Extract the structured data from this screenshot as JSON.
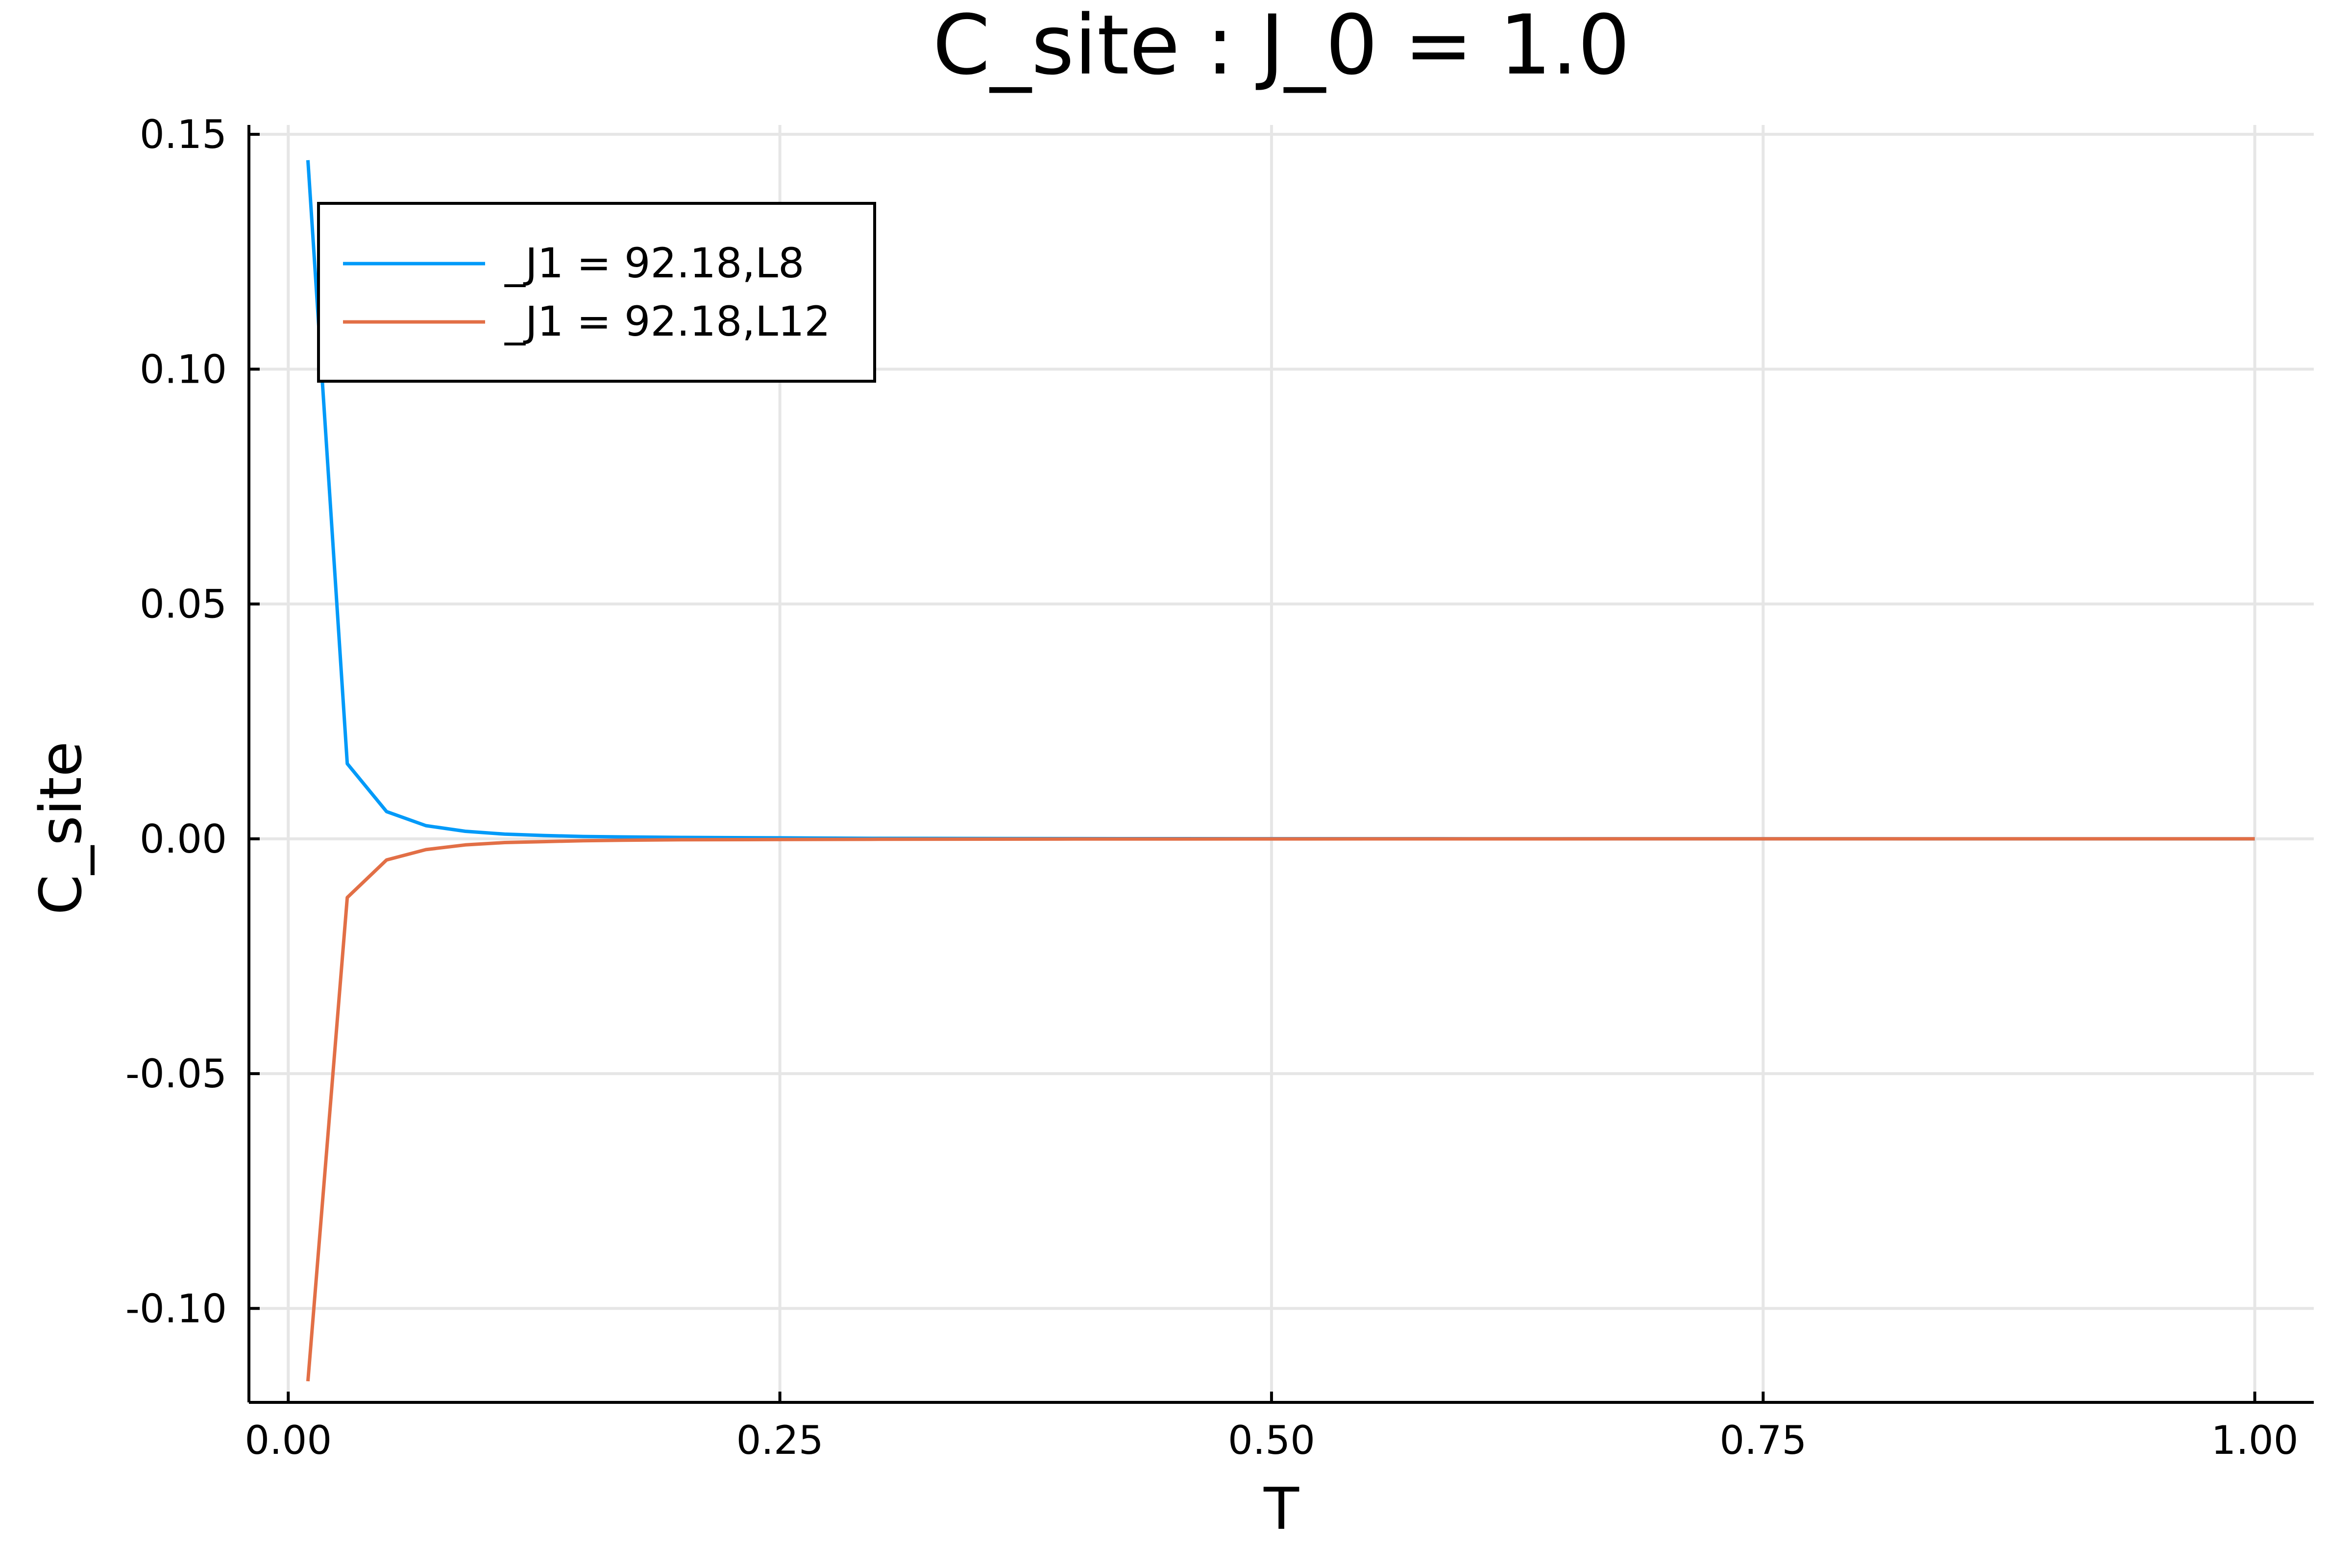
{
  "chart_data": {
    "type": "line",
    "title": "C_site : J_0 = 1.0",
    "xlabel": "T",
    "ylabel": "C_site",
    "xlim": [
      -0.02,
      1.03
    ],
    "ylim": [
      -0.12,
      0.152
    ],
    "xticks": [
      0.0,
      0.25,
      0.5,
      0.75,
      1.0
    ],
    "xtick_labels": [
      "0.00",
      "0.25",
      "0.50",
      "0.75",
      "1.00"
    ],
    "yticks": [
      -0.1,
      -0.05,
      0.0,
      0.05,
      0.1,
      0.15
    ],
    "ytick_labels": [
      "-0.10",
      "-0.05",
      "0.00",
      "0.05",
      "0.10",
      "0.15"
    ],
    "grid": true,
    "legend_position": "top-left",
    "series": [
      {
        "name": "_J1 = 92.18,L8",
        "color": "#009af9",
        "x": [
          0.01,
          0.03,
          0.05,
          0.07,
          0.09,
          0.11,
          0.13,
          0.15,
          0.17,
          0.2,
          0.25,
          0.3,
          0.4,
          0.5,
          0.6,
          0.7,
          0.8,
          0.9,
          1.0
        ],
        "y": [
          0.1445,
          0.016,
          0.0058,
          0.0028,
          0.0016,
          0.001,
          0.0007,
          0.0005,
          0.0004,
          0.0003,
          0.0002,
          0.0001,
          5e-05,
          3e-05,
          2e-05,
          1e-05,
          1e-05,
          0.0,
          0.0
        ]
      },
      {
        "name": "_J1 = 92.18,L12",
        "color": "#e26f46",
        "x": [
          0.01,
          0.03,
          0.05,
          0.07,
          0.09,
          0.11,
          0.13,
          0.15,
          0.17,
          0.2,
          0.25,
          0.3,
          0.4,
          0.5,
          0.6,
          0.7,
          0.8,
          0.9,
          1.0
        ],
        "y": [
          -0.1155,
          -0.0125,
          -0.0045,
          -0.0023,
          -0.0013,
          -0.0008,
          -0.0006,
          -0.0004,
          -0.0003,
          -0.0002,
          -0.00015,
          -0.0001,
          -5e-05,
          -3e-05,
          -2e-05,
          -1e-05,
          -1e-05,
          0.0,
          0.0
        ]
      }
    ]
  }
}
